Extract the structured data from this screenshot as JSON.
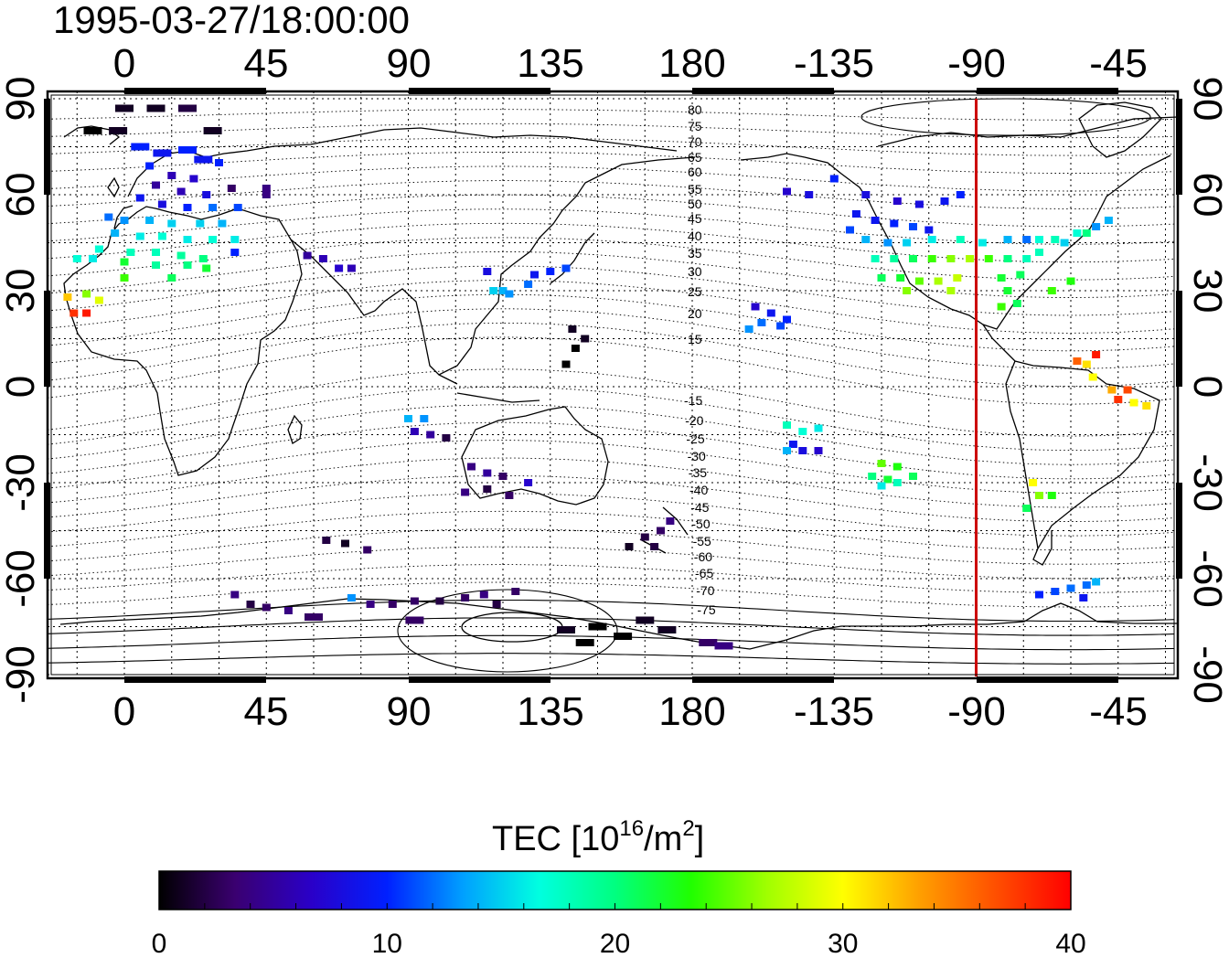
{
  "title": "1995-03-27/18:00:00",
  "top_lon_ticks": [
    "0",
    "45",
    "90",
    "135",
    "180",
    "-135",
    "-90",
    "-45"
  ],
  "bottom_lon_ticks": [
    "0",
    "45",
    "90",
    "135",
    "180",
    "-135",
    "-90",
    "-45"
  ],
  "left_lat_ticks": [
    "90",
    "60",
    "30",
    "0",
    "-30",
    "-60",
    "-90"
  ],
  "right_lat_ticks": [
    "90",
    "60",
    "30",
    "0",
    "-30",
    "-60",
    "-90"
  ],
  "contour_labels_north": [
    "80",
    "75",
    "70",
    "65",
    "60",
    "55",
    "50",
    "45",
    "40",
    "35",
    "30",
    "25",
    "20",
    "15"
  ],
  "contour_labels_south": [
    "-15",
    "-20",
    "-25",
    "-30",
    "-35",
    "-40",
    "-45",
    "-50",
    "-55",
    "-60",
    "-65",
    "-70",
    "-75"
  ],
  "colorbar": {
    "label_main": "TEC  [10",
    "label_sup1": "16",
    "label_mid": "/m",
    "label_sup2": "2",
    "label_end": "]",
    "ticks": [
      "0",
      "10",
      "20",
      "30",
      "40"
    ],
    "min": 0,
    "max": 40,
    "stops": [
      "#000000",
      "#3a0070",
      "#2a00c8",
      "#0020ff",
      "#00a0ff",
      "#00ffe0",
      "#00ff80",
      "#20ff00",
      "#a0ff00",
      "#ffff00",
      "#ffa000",
      "#ff5000",
      "#ff0000"
    ]
  },
  "meridian_marker": {
    "lon": -90,
    "color": "#cc0000"
  },
  "tec_points": [
    {
      "lon": 0,
      "lat": 87,
      "tec": 1
    },
    {
      "lon": 10,
      "lat": 87,
      "tec": 1
    },
    {
      "lon": 20,
      "lat": 87,
      "tec": 2
    },
    {
      "lon": -10,
      "lat": 80,
      "tec": 0
    },
    {
      "lon": -2,
      "lat": 80,
      "tec": 1
    },
    {
      "lon": 28,
      "lat": 80,
      "tec": 1
    },
    {
      "lon": 5,
      "lat": 75,
      "tec": 10
    },
    {
      "lon": 12,
      "lat": 73,
      "tec": 9
    },
    {
      "lon": 20,
      "lat": 74,
      "tec": 10
    },
    {
      "lon": 25,
      "lat": 71,
      "tec": 9
    },
    {
      "lon": 30,
      "lat": 70,
      "tec": 10
    },
    {
      "lon": 8,
      "lat": 69,
      "tec": 10
    },
    {
      "lon": 15,
      "lat": 66,
      "tec": 6
    },
    {
      "lon": 22,
      "lat": 65,
      "tec": 7
    },
    {
      "lon": 10,
      "lat": 63,
      "tec": 5
    },
    {
      "lon": 18,
      "lat": 61,
      "tec": 6
    },
    {
      "lon": 26,
      "lat": 60,
      "tec": 8
    },
    {
      "lon": 34,
      "lat": 62,
      "tec": 3
    },
    {
      "lon": 45,
      "lat": 60,
      "tec": 4
    },
    {
      "lon": 5,
      "lat": 59,
      "tec": 9
    },
    {
      "lon": 12,
      "lat": 57,
      "tec": 8
    },
    {
      "lon": 20,
      "lat": 56,
      "tec": 10
    },
    {
      "lon": 28,
      "lat": 56,
      "tec": 12
    },
    {
      "lon": 36,
      "lat": 56,
      "tec": 11
    },
    {
      "lon": -5,
      "lat": 53,
      "tec": 12
    },
    {
      "lon": 0,
      "lat": 52,
      "tec": 13
    },
    {
      "lon": 8,
      "lat": 52,
      "tec": 14
    },
    {
      "lon": 15,
      "lat": 51,
      "tec": 15
    },
    {
      "lon": 24,
      "lat": 51,
      "tec": 15
    },
    {
      "lon": 31,
      "lat": 51,
      "tec": 14
    },
    {
      "lon": -3,
      "lat": 48,
      "tec": 14
    },
    {
      "lon": 5,
      "lat": 47,
      "tec": 16
    },
    {
      "lon": 12,
      "lat": 47,
      "tec": 17
    },
    {
      "lon": 20,
      "lat": 46,
      "tec": 16
    },
    {
      "lon": 28,
      "lat": 46,
      "tec": 17
    },
    {
      "lon": 35,
      "lat": 46,
      "tec": 16
    },
    {
      "lon": -8,
      "lat": 43,
      "tec": 17
    },
    {
      "lon": 2,
      "lat": 42,
      "tec": 18
    },
    {
      "lon": 10,
      "lat": 42,
      "tec": 18
    },
    {
      "lon": 18,
      "lat": 41,
      "tec": 19
    },
    {
      "lon": 25,
      "lat": 40,
      "tec": 20
    },
    {
      "lon": 35,
      "lat": 42,
      "tec": 10
    },
    {
      "lon": -15,
      "lat": 40,
      "tec": 17
    },
    {
      "lon": -10,
      "lat": 40,
      "tec": 16
    },
    {
      "lon": 0,
      "lat": 39,
      "tec": 22
    },
    {
      "lon": 10,
      "lat": 38,
      "tec": 19
    },
    {
      "lon": 20,
      "lat": 38,
      "tec": 20
    },
    {
      "lon": 26,
      "lat": 37,
      "tec": 22
    },
    {
      "lon": 0,
      "lat": 34,
      "tec": 24
    },
    {
      "lon": 15,
      "lat": 34,
      "tec": 21
    },
    {
      "lon": -12,
      "lat": 29,
      "tec": 26
    },
    {
      "lon": -18,
      "lat": 28,
      "tec": 32
    },
    {
      "lon": -8,
      "lat": 27,
      "tec": 29
    },
    {
      "lon": -16,
      "lat": 23,
      "tec": 38
    },
    {
      "lon": -12,
      "lat": 23,
      "tec": 39
    },
    {
      "lon": 58,
      "lat": 41,
      "tec": 5
    },
    {
      "lon": 63,
      "lat": 40,
      "tec": 6
    },
    {
      "lon": 68,
      "lat": 37,
      "tec": 7
    },
    {
      "lon": 72,
      "lat": 37,
      "tec": 6
    },
    {
      "lon": 45,
      "lat": 62,
      "tec": 4
    },
    {
      "lon": 115,
      "lat": 36,
      "tec": 8
    },
    {
      "lon": 130,
      "lat": 35,
      "tec": 9
    },
    {
      "lon": 135,
      "lat": 36,
      "tec": 10
    },
    {
      "lon": 140,
      "lat": 37,
      "tec": 11
    },
    {
      "lon": 128,
      "lat": 32,
      "tec": 12
    },
    {
      "lon": 120,
      "lat": 30,
      "tec": 14
    },
    {
      "lon": 117,
      "lat": 30,
      "tec": 15
    },
    {
      "lon": 122,
      "lat": 29,
      "tec": 13
    },
    {
      "lon": 142,
      "lat": 18,
      "tec": 1
    },
    {
      "lon": 146,
      "lat": 15,
      "tec": 1
    },
    {
      "lon": 143,
      "lat": 12,
      "tec": 0
    },
    {
      "lon": 140,
      "lat": 7,
      "tec": 0
    },
    {
      "lon": -160,
      "lat": 25,
      "tec": 7
    },
    {
      "lon": -155,
      "lat": 23,
      "tec": 9
    },
    {
      "lon": -150,
      "lat": 21,
      "tec": 10
    },
    {
      "lon": -158,
      "lat": 20,
      "tec": 12
    },
    {
      "lon": -162,
      "lat": 18,
      "tec": 13
    },
    {
      "lon": -152,
      "lat": 19,
      "tec": 11
    },
    {
      "lon": 90,
      "lat": -10,
      "tec": 14
    },
    {
      "lon": 95,
      "lat": -10,
      "tec": 13
    },
    {
      "lon": 92,
      "lat": -14,
      "tec": 6
    },
    {
      "lon": 97,
      "lat": -15,
      "tec": 5
    },
    {
      "lon": 102,
      "lat": -16,
      "tec": 2
    },
    {
      "lon": 110,
      "lat": -25,
      "tec": 4
    },
    {
      "lon": 115,
      "lat": -27,
      "tec": 5
    },
    {
      "lon": 120,
      "lat": -28,
      "tec": 3
    },
    {
      "lon": 115,
      "lat": -32,
      "tec": 2
    },
    {
      "lon": 122,
      "lat": -34,
      "tec": 3
    },
    {
      "lon": 108,
      "lat": -33,
      "tec": 4
    },
    {
      "lon": 128,
      "lat": -30,
      "tec": 7
    },
    {
      "lon": 165,
      "lat": -47,
      "tec": 2
    },
    {
      "lon": 170,
      "lat": -45,
      "tec": 3
    },
    {
      "lon": 173,
      "lat": -42,
      "tec": 4
    },
    {
      "lon": 168,
      "lat": -50,
      "tec": 2
    },
    {
      "lon": 160,
      "lat": -50,
      "tec": 1
    },
    {
      "lon": -150,
      "lat": -12,
      "tec": 18
    },
    {
      "lon": -145,
      "lat": -14,
      "tec": 17
    },
    {
      "lon": -140,
      "lat": -13,
      "tec": 16
    },
    {
      "lon": -148,
      "lat": -18,
      "tec": 9
    },
    {
      "lon": -145,
      "lat": -20,
      "tec": 8
    },
    {
      "lon": -140,
      "lat": -20,
      "tec": 7
    },
    {
      "lon": -150,
      "lat": -20,
      "tec": 14
    },
    {
      "lon": -120,
      "lat": -24,
      "tec": 25
    },
    {
      "lon": -115,
      "lat": -25,
      "tec": 23
    },
    {
      "lon": -118,
      "lat": -29,
      "tec": 22
    },
    {
      "lon": -123,
      "lat": -28,
      "tec": 20
    },
    {
      "lon": -110,
      "lat": -28,
      "tec": 21
    },
    {
      "lon": -115,
      "lat": -30,
      "tec": 18
    },
    {
      "lon": -120,
      "lat": -31,
      "tec": 16
    },
    {
      "lon": -135,
      "lat": 65,
      "tec": 10
    },
    {
      "lon": -150,
      "lat": 61,
      "tec": 7
    },
    {
      "lon": -143,
      "lat": 60,
      "tec": 8
    },
    {
      "lon": -125,
      "lat": 60,
      "tec": 8
    },
    {
      "lon": -115,
      "lat": 58,
      "tec": 7
    },
    {
      "lon": -108,
      "lat": 57,
      "tec": 8
    },
    {
      "lon": -100,
      "lat": 58,
      "tec": 9
    },
    {
      "lon": -95,
      "lat": 60,
      "tec": 10
    },
    {
      "lon": -128,
      "lat": 54,
      "tec": 9
    },
    {
      "lon": -122,
      "lat": 52,
      "tec": 9
    },
    {
      "lon": -116,
      "lat": 51,
      "tec": 10
    },
    {
      "lon": -110,
      "lat": 50,
      "tec": 11
    },
    {
      "lon": -105,
      "lat": 49,
      "tec": 9
    },
    {
      "lon": -130,
      "lat": 49,
      "tec": 11
    },
    {
      "lon": -125,
      "lat": 46,
      "tec": 14
    },
    {
      "lon": -118,
      "lat": 45,
      "tec": 13
    },
    {
      "lon": -112,
      "lat": 45,
      "tec": 15
    },
    {
      "lon": -104,
      "lat": 46,
      "tec": 16
    },
    {
      "lon": -95,
      "lat": 46,
      "tec": 18
    },
    {
      "lon": -88,
      "lat": 45,
      "tec": 16
    },
    {
      "lon": -122,
      "lat": 40,
      "tec": 18
    },
    {
      "lon": -116,
      "lat": 40,
      "tec": 19
    },
    {
      "lon": -110,
      "lat": 40,
      "tec": 21
    },
    {
      "lon": -104,
      "lat": 40,
      "tec": 24
    },
    {
      "lon": -98,
      "lat": 40,
      "tec": 26
    },
    {
      "lon": -92,
      "lat": 40,
      "tec": 27
    },
    {
      "lon": -86,
      "lat": 40,
      "tec": 24
    },
    {
      "lon": -80,
      "lat": 40,
      "tec": 20
    },
    {
      "lon": -74,
      "lat": 40,
      "tec": 18
    },
    {
      "lon": -120,
      "lat": 34,
      "tec": 21
    },
    {
      "lon": -114,
      "lat": 34,
      "tec": 22
    },
    {
      "lon": -108,
      "lat": 33,
      "tec": 25
    },
    {
      "lon": -102,
      "lat": 33,
      "tec": 27
    },
    {
      "lon": -96,
      "lat": 34,
      "tec": 28
    },
    {
      "lon": -82,
      "lat": 34,
      "tec": 22
    },
    {
      "lon": -76,
      "lat": 35,
      "tec": 21
    },
    {
      "lon": -112,
      "lat": 30,
      "tec": 26
    },
    {
      "lon": -98,
      "lat": 30,
      "tec": 27
    },
    {
      "lon": -80,
      "lat": 30,
      "tec": 22
    },
    {
      "lon": -82,
      "lat": 25,
      "tec": 24
    },
    {
      "lon": -77,
      "lat": 26,
      "tec": 21
    },
    {
      "lon": -80,
      "lat": 46,
      "tec": 14
    },
    {
      "lon": -74,
      "lat": 46,
      "tec": 12
    },
    {
      "lon": -70,
      "lat": 46,
      "tec": 17
    },
    {
      "lon": -65,
      "lat": 46,
      "tec": 18
    },
    {
      "lon": -62,
      "lat": 45,
      "tec": 15
    },
    {
      "lon": -58,
      "lat": 48,
      "tec": 17
    },
    {
      "lon": -70,
      "lat": 42,
      "tec": 18
    },
    {
      "lon": -66,
      "lat": 30,
      "tec": 24
    },
    {
      "lon": -60,
      "lat": 33,
      "tec": 23
    },
    {
      "lon": -55,
      "lat": 48,
      "tec": 20
    },
    {
      "lon": -52,
      "lat": 50,
      "tec": 13
    },
    {
      "lon": -48,
      "lat": 52,
      "tec": 14
    },
    {
      "lon": -58,
      "lat": 8,
      "tec": 36
    },
    {
      "lon": -55,
      "lat": 7,
      "tec": 31
    },
    {
      "lon": -52,
      "lat": 10,
      "tec": 39
    },
    {
      "lon": -53,
      "lat": 3,
      "tec": 30
    },
    {
      "lon": -47,
      "lat": -1,
      "tec": 33
    },
    {
      "lon": -42,
      "lat": -1,
      "tec": 37
    },
    {
      "lon": -45,
      "lat": -4,
      "tec": 38
    },
    {
      "lon": -40,
      "lat": -5,
      "tec": 30
    },
    {
      "lon": -36,
      "lat": -6,
      "tec": 31
    },
    {
      "lon": -72,
      "lat": -30,
      "tec": 30
    },
    {
      "lon": -70,
      "lat": -34,
      "tec": 26
    },
    {
      "lon": -66,
      "lat": -34,
      "tec": 23
    },
    {
      "lon": -74,
      "lat": -38,
      "tec": 21
    },
    {
      "lon": -70,
      "lat": -65,
      "tec": 10
    },
    {
      "lon": -65,
      "lat": -64,
      "tec": 11
    },
    {
      "lon": -60,
      "lat": -63,
      "tec": 12
    },
    {
      "lon": -55,
      "lat": -62,
      "tec": 12
    },
    {
      "lon": -52,
      "lat": -61,
      "tec": 14
    },
    {
      "lon": -56,
      "lat": -66,
      "tec": 9
    },
    {
      "lon": 64,
      "lat": -48,
      "tec": 2
    },
    {
      "lon": 70,
      "lat": -49,
      "tec": 1
    },
    {
      "lon": 77,
      "lat": -51,
      "tec": 3
    },
    {
      "lon": 35,
      "lat": -65,
      "tec": 4
    },
    {
      "lon": 40,
      "lat": -68,
      "tec": 2
    },
    {
      "lon": 45,
      "lat": -69,
      "tec": 3
    },
    {
      "lon": 52,
      "lat": -70,
      "tec": 4
    },
    {
      "lon": 60,
      "lat": -72,
      "tec": 3
    },
    {
      "lon": 72,
      "lat": -66,
      "tec": 13
    },
    {
      "lon": 78,
      "lat": -68,
      "tec": 4
    },
    {
      "lon": 85,
      "lat": -68,
      "tec": 3
    },
    {
      "lon": 92,
      "lat": -67,
      "tec": 3
    },
    {
      "lon": 100,
      "lat": -67,
      "tec": 2
    },
    {
      "lon": 108,
      "lat": -66,
      "tec": 3
    },
    {
      "lon": 114,
      "lat": -65,
      "tec": 4
    },
    {
      "lon": 124,
      "lat": -64,
      "tec": 3
    },
    {
      "lon": 118,
      "lat": -68,
      "tec": 2
    },
    {
      "lon": 92,
      "lat": -73,
      "tec": 3
    },
    {
      "lon": 140,
      "lat": -76,
      "tec": 1
    },
    {
      "lon": 150,
      "lat": -75,
      "tec": 0
    },
    {
      "lon": 158,
      "lat": -78,
      "tec": 0
    },
    {
      "lon": 146,
      "lat": -80,
      "tec": 0
    },
    {
      "lon": 165,
      "lat": -73,
      "tec": 1
    },
    {
      "lon": 172,
      "lat": -76,
      "tec": 1
    },
    {
      "lon": 185,
      "lat": -80,
      "tec": 3
    },
    {
      "lon": 190,
      "lat": -81,
      "tec": 4
    }
  ]
}
